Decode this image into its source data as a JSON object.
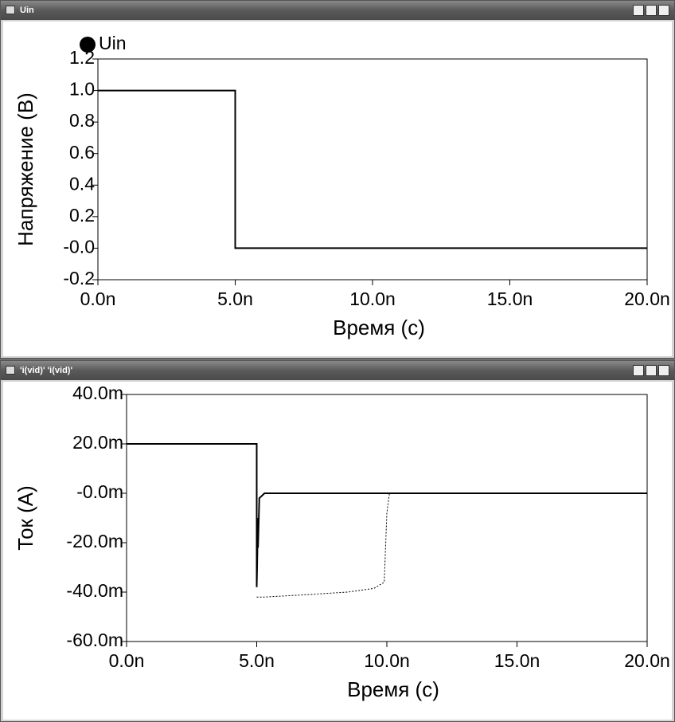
{
  "windows": [
    {
      "title": "Uin"
    },
    {
      "title": "'i(vid)' 'i(vid)'"
    }
  ],
  "chart_data": [
    {
      "type": "line",
      "ylabel": "Напряжение (В)",
      "xlabel": "Время (с)",
      "xlim": [
        0,
        20
      ],
      "xticks": [
        {
          "value": 0,
          "label": "0.0n"
        },
        {
          "value": 5,
          "label": "5.0n"
        },
        {
          "value": 10,
          "label": "10.0n"
        },
        {
          "value": 15,
          "label": "15.0n"
        },
        {
          "value": 20,
          "label": "20.0n"
        }
      ],
      "ylim": [
        -0.2,
        1.2
      ],
      "yticks": [
        1.2,
        {
          "value": 1,
          "label": "1.0"
        },
        0.8,
        0.6,
        0.4,
        0.2,
        {
          "value": 0,
          "label": "-0.0"
        },
        -0.2
      ],
      "legend": "top-left",
      "series": [
        {
          "name": "Uin",
          "color": "#000000",
          "line_style": "solid",
          "x": [
            0,
            5,
            5,
            20
          ],
          "values": [
            1,
            1,
            0,
            0
          ]
        }
      ]
    },
    {
      "type": "line",
      "ylabel": "Ток (А)",
      "xlabel": "Время  (с)",
      "xlim": [
        0,
        20
      ],
      "xticks": [
        {
          "value": 0,
          "label": "0.0n"
        },
        {
          "value": 5,
          "label": "5.0n"
        },
        {
          "value": 10,
          "label": "10.0n"
        },
        {
          "value": 15,
          "label": "15.0n"
        },
        {
          "value": 20,
          "label": "20.0n"
        }
      ],
      "ylim": [
        -60,
        40
      ],
      "yticks": [
        {
          "value": 40,
          "label": "40.0m"
        },
        {
          "value": 20,
          "label": "20.0m"
        },
        {
          "value": 0,
          "label": "-0.0m"
        },
        {
          "value": -20,
          "label": "-20.0m"
        },
        {
          "value": -40,
          "label": "-40.0m"
        },
        {
          "value": -60,
          "label": "-60.0m"
        }
      ],
      "series": [
        {
          "color": "#000000",
          "line_style": "solid",
          "x": [
            0,
            5,
            5,
            5.05,
            5.05,
            5.1,
            5.3,
            20
          ],
          "values": [
            20,
            20,
            -38,
            -10,
            -22,
            -2,
            0,
            0
          ]
        },
        {
          "color": "#000000",
          "line_style": "dashed",
          "x": [
            5,
            5.3,
            7,
            8.5,
            9.5,
            9.9,
            10,
            10.1
          ],
          "values": [
            -42,
            -42,
            -41,
            -40,
            -38.5,
            -36,
            -8,
            0
          ]
        }
      ]
    }
  ]
}
